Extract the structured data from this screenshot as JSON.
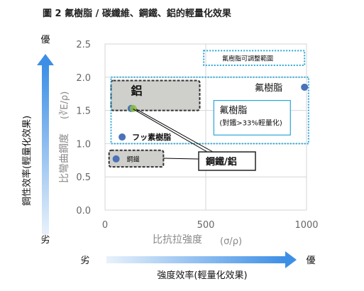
{
  "title": "圖 2  氟樹脂 / 碳纖維、鋼鐵、鋁的輕量化效果",
  "chart_data": {
    "type": "scatter",
    "title": "圖 2  氟樹脂 / 碳纖維、鋼鐵、鋁的輕量化效果",
    "xlabel": "比抗拉強度",
    "xlabel_unit": "(σ/ρ)",
    "ylabel": "比彎曲鋼度",
    "ylabel_unit": "(∛E/ρ)",
    "xlim": [
      0,
      1000
    ],
    "ylim": [
      0,
      2.5
    ],
    "x_ticks": [
      "0",
      "500",
      "1000"
    ],
    "y_ticks": [
      "0.0",
      "0.5",
      "1.0",
      "1.5",
      "2.0",
      "2.5"
    ],
    "grid": true,
    "points": [
      {
        "x": 55,
        "y": 0.77,
        "color": "#4a72b8"
      },
      {
        "x": 85,
        "y": 1.1,
        "color": "#4a72b8"
      },
      {
        "x": 130,
        "y": 1.53,
        "color": "#4a72b8"
      },
      {
        "x": 140,
        "y": 1.53,
        "color": "#8fbf3f"
      },
      {
        "x": 990,
        "y": 1.85,
        "color": "#4a72b8"
      }
    ],
    "regions": [
      {
        "label": "鋼鐵",
        "x0": 20,
        "x1": 290,
        "y0": 0.65,
        "y1": 0.9,
        "style": "gray-dashed"
      },
      {
        "label": "鋁",
        "x0": 30,
        "x1": 470,
        "y0": 1.5,
        "y1": 1.95,
        "style": "gray-dashed"
      },
      {
        "label": "氟樹脂可調整範圍",
        "x0": 490,
        "x1": 990,
        "y0": 2.18,
        "y1": 2.4,
        "style": "blue-dotted"
      },
      {
        "label": "氟樹脂",
        "x0": 30,
        "x1": 1010,
        "y0": 1.0,
        "y1": 2.0,
        "style": "blue-dotted"
      }
    ],
    "annotations": {
      "fu_resin": "フッ素樹脂",
      "fluoro_label": "氟樹脂",
      "box_title": "氟樹脂",
      "box_sub": "(對鐵>33%輕量化)",
      "steel_al": "鋼鐵/鋁"
    },
    "y_axis_arrow": {
      "label": "鋼性效率(輕量化效果)",
      "top": "優",
      "bottom": "劣"
    },
    "x_axis_arrow": {
      "label": "強度效率(輕量化效果)",
      "left": "劣",
      "right": "優"
    }
  }
}
